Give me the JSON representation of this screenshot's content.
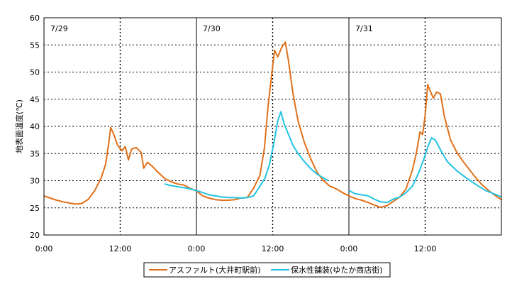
{
  "chart_data": {
    "type": "line",
    "ylabel": "地表面温度(℃)",
    "ylim": [
      20,
      60
    ],
    "yticks": [
      "20",
      "25",
      "30",
      "35",
      "40",
      "45",
      "50",
      "55",
      "60"
    ],
    "xlim": [
      0,
      72
    ],
    "xticks": [
      {
        "x": 0,
        "label": "0:00"
      },
      {
        "x": 12,
        "label": "12:00"
      },
      {
        "x": 24,
        "label": "0:00"
      },
      {
        "x": 36,
        "label": "12:00"
      },
      {
        "x": 48,
        "label": "0:00"
      },
      {
        "x": 60,
        "label": "12:00"
      }
    ],
    "day_labels": [
      {
        "x": 0,
        "label": "7/29"
      },
      {
        "x": 24,
        "label": "7/30"
      },
      {
        "x": 48,
        "label": "7/31"
      }
    ],
    "grid": true,
    "legend_position": "bottom",
    "series": [
      {
        "name": "アスファルト(大井町駅前)",
        "color": "#e0701a",
        "points": [
          [
            0,
            27.2
          ],
          [
            1,
            26.8
          ],
          [
            2,
            26.4
          ],
          [
            3,
            26.1
          ],
          [
            4,
            25.9
          ],
          [
            5,
            25.7
          ],
          [
            6,
            25.8
          ],
          [
            7,
            26.6
          ],
          [
            8,
            28.2
          ],
          [
            9,
            30.5
          ],
          [
            9.7,
            33
          ],
          [
            10.2,
            37
          ],
          [
            10.5,
            39.8
          ],
          [
            11,
            38.5
          ],
          [
            11.6,
            36.5
          ],
          [
            12.3,
            35.5
          ],
          [
            12.8,
            36.3
          ],
          [
            13.3,
            33.8
          ],
          [
            13.8,
            35.8
          ],
          [
            14.5,
            36.1
          ],
          [
            15.3,
            35.2
          ],
          [
            15.7,
            32.3
          ],
          [
            16.3,
            33.4
          ],
          [
            17,
            32.7
          ],
          [
            18,
            31.5
          ],
          [
            19,
            30.4
          ],
          [
            20,
            29.8
          ],
          [
            21,
            29.4
          ],
          [
            22,
            29.2
          ],
          [
            23,
            28.6
          ],
          [
            24,
            28.1
          ],
          [
            25,
            27.2
          ],
          [
            26,
            26.8
          ],
          [
            27,
            26.5
          ],
          [
            28,
            26.4
          ],
          [
            29,
            26.4
          ],
          [
            30,
            26.5
          ],
          [
            31,
            26.8
          ],
          [
            32,
            26.9
          ],
          [
            33,
            28.6
          ],
          [
            34,
            31
          ],
          [
            34.7,
            36
          ],
          [
            35.3,
            44
          ],
          [
            35.9,
            50
          ],
          [
            36.3,
            54
          ],
          [
            36.8,
            52.8
          ],
          [
            37.4,
            54.5
          ],
          [
            38,
            55.5
          ],
          [
            38.5,
            52
          ],
          [
            39.2,
            46
          ],
          [
            40,
            41
          ],
          [
            41,
            37
          ],
          [
            42,
            34
          ],
          [
            43,
            31.5
          ],
          [
            44,
            30
          ],
          [
            45,
            29
          ],
          [
            46,
            28.5
          ],
          [
            47,
            27.8
          ],
          [
            48,
            27.2
          ],
          [
            49,
            26.7
          ],
          [
            50,
            26.4
          ],
          [
            51,
            26
          ],
          [
            52,
            25.5
          ],
          [
            53,
            25.1
          ],
          [
            54,
            25.4
          ],
          [
            55,
            26.2
          ],
          [
            56,
            27
          ],
          [
            57,
            28.5
          ],
          [
            58,
            32
          ],
          [
            58.6,
            35
          ],
          [
            59.2,
            39
          ],
          [
            59.6,
            38.5
          ],
          [
            60,
            42
          ],
          [
            60.4,
            47.7
          ],
          [
            60.8,
            46.5
          ],
          [
            61.3,
            45.2
          ],
          [
            61.8,
            46.3
          ],
          [
            62.4,
            46
          ],
          [
            63,
            42
          ],
          [
            64,
            37.5
          ],
          [
            65,
            35.2
          ],
          [
            66,
            33.5
          ],
          [
            67,
            32
          ],
          [
            68,
            30.5
          ],
          [
            69,
            29.2
          ],
          [
            70,
            28.2
          ],
          [
            71,
            27.3
          ],
          [
            72,
            26.5
          ]
        ]
      },
      {
        "name": "保水性舗装(ゆたか商店街)",
        "color": "#22c3e0",
        "points": [
          [
            19,
            29.4
          ],
          [
            20,
            29.1
          ],
          [
            21,
            28.9
          ],
          [
            22,
            28.7
          ],
          [
            23,
            28.5
          ],
          [
            24,
            28.2
          ],
          [
            25,
            27.8
          ],
          [
            26,
            27.4
          ],
          [
            27,
            27.2
          ],
          [
            28,
            27
          ],
          [
            29,
            26.9
          ],
          [
            30,
            26.9
          ],
          [
            31,
            26.8
          ],
          [
            32,
            26.9
          ],
          [
            33,
            27.2
          ],
          [
            34,
            29
          ],
          [
            34.8,
            30.5
          ],
          [
            35.5,
            33
          ],
          [
            36.2,
            37
          ],
          [
            36.8,
            41
          ],
          [
            37.3,
            42.7
          ],
          [
            37.8,
            40.5
          ],
          [
            38.5,
            38.5
          ],
          [
            39.2,
            36.5
          ],
          [
            40,
            35
          ],
          [
            41,
            33.5
          ],
          [
            42,
            32.2
          ],
          [
            43,
            31.2
          ],
          [
            44,
            30.5
          ],
          [
            44.8,
            30
          ]
        ]
      },
      {
        "name": "保水性舗装(ゆたか商店街)",
        "color": "#22c3e0",
        "points": [
          [
            48,
            28.2
          ],
          [
            49,
            27.6
          ],
          [
            50,
            27.4
          ],
          [
            51,
            27.2
          ],
          [
            52,
            26.6
          ],
          [
            53,
            26.1
          ],
          [
            54,
            26
          ],
          [
            55,
            26.6
          ],
          [
            56,
            27
          ],
          [
            57,
            27.8
          ],
          [
            58,
            29
          ],
          [
            59,
            31.5
          ],
          [
            59.8,
            34
          ],
          [
            60.5,
            36.5
          ],
          [
            61,
            37.9
          ],
          [
            61.6,
            37.5
          ],
          [
            62.5,
            35.5
          ],
          [
            63.5,
            33.5
          ],
          [
            65,
            31.8
          ],
          [
            66.5,
            30.5
          ],
          [
            68,
            29.3
          ],
          [
            69.5,
            28.2
          ],
          [
            71,
            27.5
          ],
          [
            72,
            27
          ]
        ]
      }
    ],
    "legend": [
      {
        "label": "アスファルト(大井町駅前)",
        "color": "#e0701a"
      },
      {
        "label": "保水性舗装(ゆたか商店街)",
        "color": "#22c3e0"
      }
    ]
  }
}
